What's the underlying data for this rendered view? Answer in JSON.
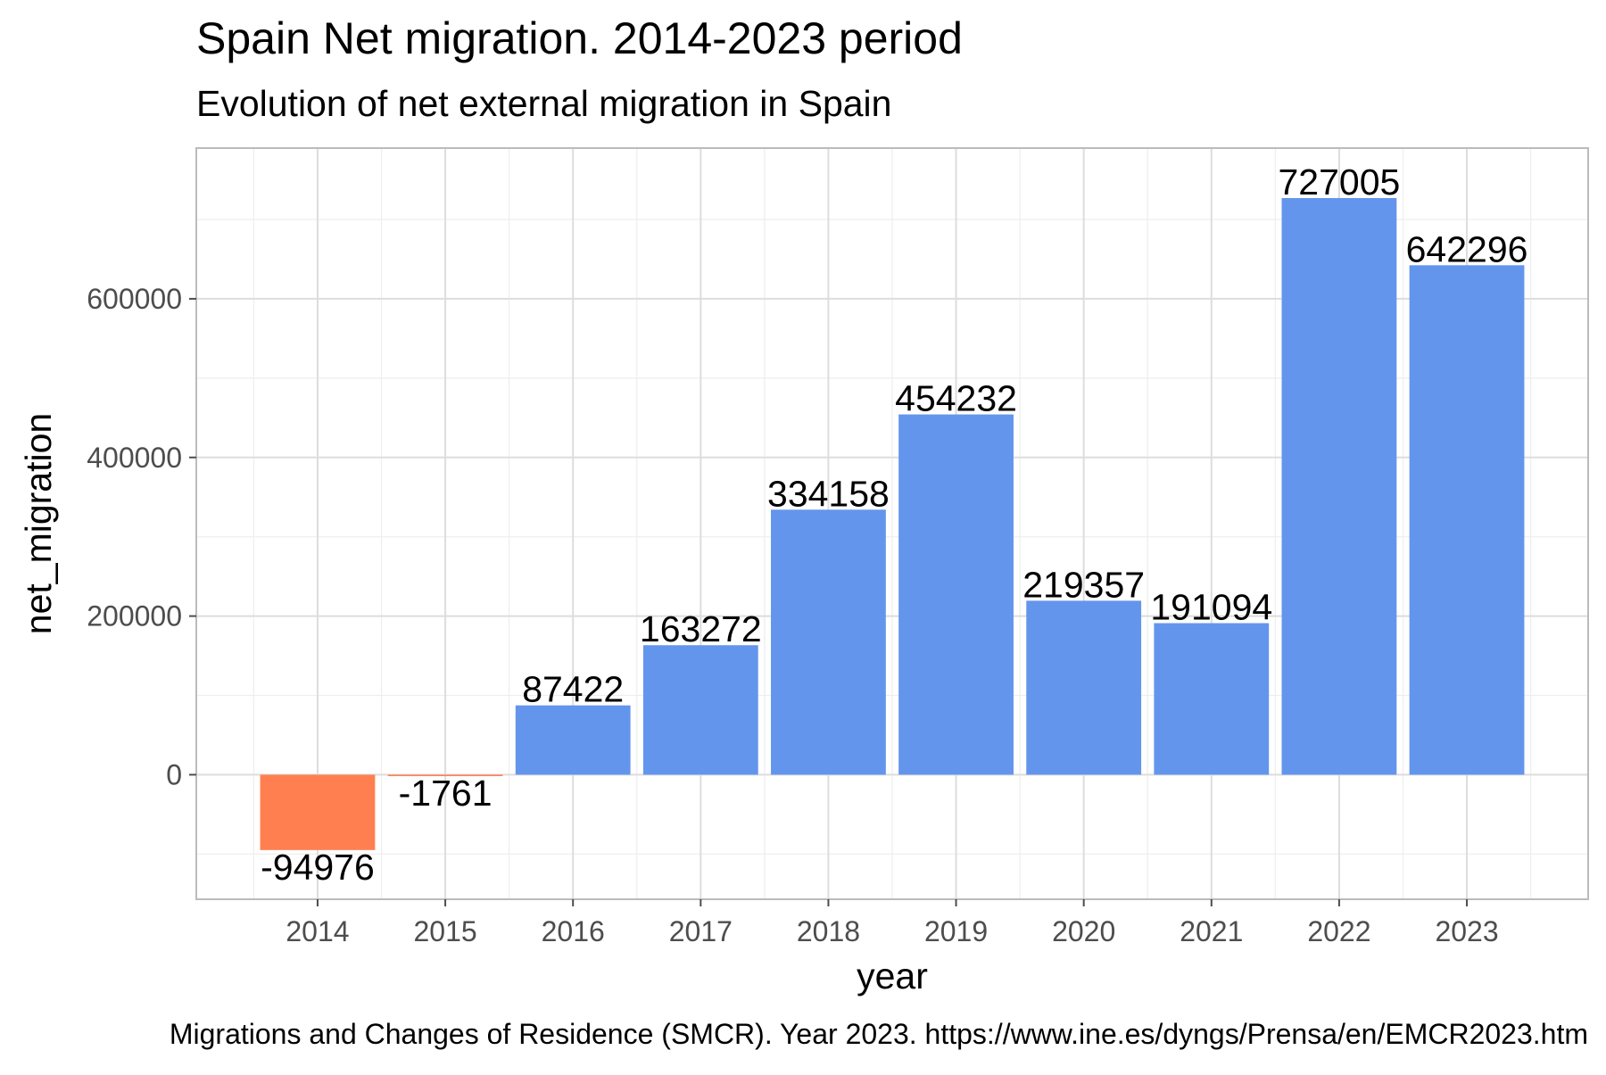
{
  "chart_data": {
    "type": "bar",
    "title": "Spain Net migration. 2014-2023 period",
    "subtitle": "Evolution of net external migration in Spain",
    "xlabel": "year",
    "ylabel": "net_migration",
    "caption": "Migrations and Changes of Residence (SMCR). Year 2023. https://www.ine.es/dyngs/Prensa/en/EMCR2023.htm",
    "categories": [
      "2014",
      "2015",
      "2016",
      "2017",
      "2018",
      "2019",
      "2020",
      "2021",
      "2022",
      "2023"
    ],
    "values": [
      -94976,
      -1761,
      87422,
      163272,
      334158,
      454232,
      219357,
      191094,
      727005,
      642296
    ],
    "data_labels": [
      "-94976",
      "-1761",
      "87422",
      "163272",
      "334158",
      "454232",
      "219357",
      "191094",
      "727005",
      "642296"
    ],
    "y_ticks": [
      0,
      200000,
      400000,
      600000
    ],
    "y_tick_labels": [
      "0",
      "200000",
      "400000",
      "600000"
    ],
    "ylim": [
      -157000,
      790000
    ],
    "grid": true,
    "legend": "none",
    "colors": {
      "positive": "#6495ED",
      "negative": "#FF7F50",
      "grid_major": "#DDDDDD",
      "grid_minor": "#EEEEEE",
      "panel_border": "#BBBBBB",
      "text": "#000000",
      "tick_text": "#4D4D4D"
    }
  }
}
